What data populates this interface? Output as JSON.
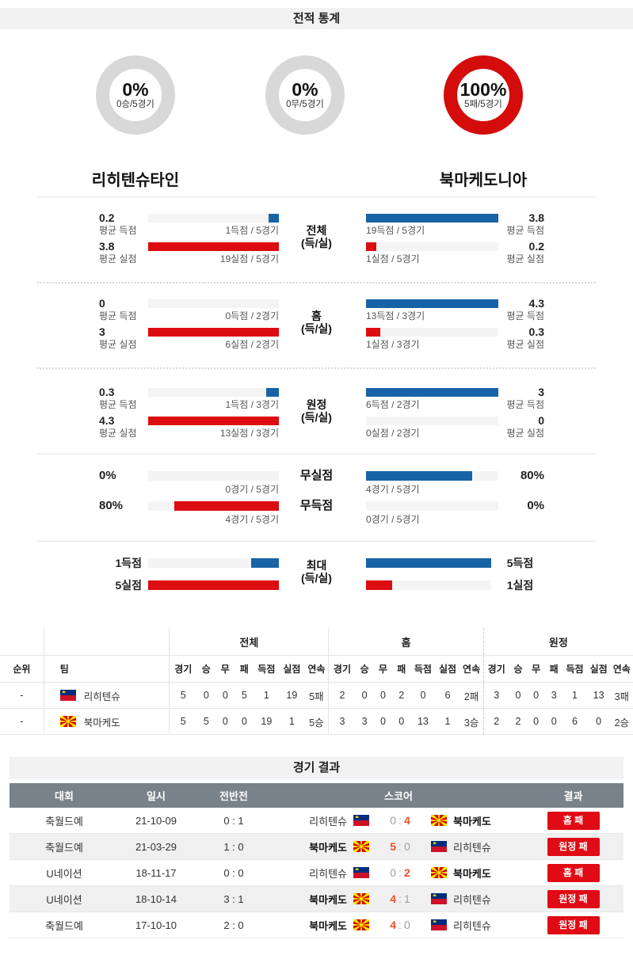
{
  "header": {
    "title": "전적 통계"
  },
  "donuts": [
    {
      "pct": "0%",
      "label": "0승/5경기",
      "color": "gray"
    },
    {
      "pct": "0%",
      "label": "0무/5경기",
      "color": "gray"
    },
    {
      "pct": "100%",
      "label": "5패/5경기",
      "color": "red"
    }
  ],
  "teams": {
    "home": "리히텐슈타인",
    "away": "북마케도니아"
  },
  "sections": [
    {
      "center": [
        "전체",
        "(득/실)"
      ],
      "rows": [
        {
          "left": {
            "value": "0.2",
            "avg_label": "평균 득점",
            "games_label": "1득점 / 5경기",
            "fill_pct": 8
          },
          "right": {
            "value": "3.8",
            "avg_label": "평균 득점",
            "games_label": "19득점 / 5경기",
            "fill_pct": 100
          }
        },
        {
          "left": {
            "value": "3.8",
            "avg_label": "평균 실점",
            "games_label": "19실점 / 5경기",
            "fill_pct": 100
          },
          "right": {
            "value": "0.2",
            "avg_label": "평균 실점",
            "games_label": "1실점 / 5경기",
            "fill_pct": 8
          }
        }
      ]
    },
    {
      "center": [
        "홈",
        "(득/실)"
      ],
      "rows": [
        {
          "left": {
            "value": "0",
            "avg_label": "평균 득점",
            "games_label": "0득점 / 2경기",
            "fill_pct": 0
          },
          "right": {
            "value": "4.3",
            "avg_label": "평균 득점",
            "games_label": "13득점 / 3경기",
            "fill_pct": 100
          }
        },
        {
          "left": {
            "value": "3",
            "avg_label": "평균 실점",
            "games_label": "6실점 / 2경기",
            "fill_pct": 100
          },
          "right": {
            "value": "0.3",
            "avg_label": "평균 실점",
            "games_label": "1실점 / 3경기",
            "fill_pct": 11
          }
        }
      ]
    },
    {
      "center": [
        "원정",
        "(득/실)"
      ],
      "rows": [
        {
          "left": {
            "value": "0.3",
            "avg_label": "평균 득점",
            "games_label": "1득점 / 3경기",
            "fill_pct": 10
          },
          "right": {
            "value": "3",
            "avg_label": "평균 득점",
            "games_label": "6득점 / 2경기",
            "fill_pct": 100
          }
        },
        {
          "left": {
            "value": "4.3",
            "avg_label": "평균 실점",
            "games_label": "13실점 / 3경기",
            "fill_pct": 100
          },
          "right": {
            "value": "0",
            "avg_label": "평균 실점",
            "games_label": "0실점 / 2경기",
            "fill_pct": 0
          }
        }
      ]
    },
    {
      "center": [
        "무실점",
        "무득점"
      ],
      "rows": [
        {
          "left": {
            "value": "0%",
            "games_label": "0경기 / 5경기",
            "fill_pct": 0
          },
          "right": {
            "value": "80%",
            "games_label": "4경기 / 5경기",
            "fill_pct": 80
          }
        },
        {
          "left": {
            "value": "80%",
            "games_label": "4경기 / 5경기",
            "fill_pct": 80
          },
          "right": {
            "value": "0%",
            "games_label": "0경기 / 5경기",
            "fill_pct": 0
          }
        }
      ]
    },
    {
      "center": [
        "최대",
        "(득/실)"
      ],
      "rows": [
        {
          "left": {
            "value": "1득점",
            "fill_pct": 21
          },
          "right": {
            "value": "5득점",
            "fill_pct": 100
          }
        },
        {
          "left": {
            "value": "5실점",
            "fill_pct": 100
          },
          "right": {
            "value": "1실점",
            "fill_pct": 21
          }
        }
      ]
    }
  ],
  "standings": {
    "rank_header": "순위",
    "team_header": "팀",
    "groups": [
      "전체",
      "홈",
      "원정"
    ],
    "columns": [
      "경기",
      "승",
      "무",
      "패",
      "득점",
      "실점",
      "연속"
    ],
    "rows": [
      {
        "rank": "-",
        "team": "리히텐슈",
        "flag": "liechtenstein",
        "all": [
          "5",
          "0",
          "0",
          "5",
          "1",
          "19",
          "5패"
        ],
        "home": [
          "2",
          "0",
          "0",
          "2",
          "0",
          "6",
          "2패"
        ],
        "away": [
          "3",
          "0",
          "0",
          "3",
          "1",
          "13",
          "3패"
        ]
      },
      {
        "rank": "-",
        "team": "북마케도",
        "flag": "north-macedonia",
        "all": [
          "5",
          "5",
          "0",
          "0",
          "19",
          "1",
          "5승"
        ],
        "home": [
          "3",
          "3",
          "0",
          "0",
          "13",
          "1",
          "3승"
        ],
        "away": [
          "2",
          "2",
          "0",
          "0",
          "6",
          "0",
          "2승"
        ]
      }
    ]
  },
  "results": {
    "title": "경기 결과",
    "headers": [
      "대회",
      "일시",
      "전반전",
      "스코어",
      "결과"
    ],
    "rows": [
      {
        "league": "축월드예",
        "date": "21-10-09",
        "half": "0 : 1",
        "home": "리히텐슈",
        "home_flag": "liechtenstein",
        "home_score": "0",
        "away_score": "4",
        "away": "북마케도",
        "away_flag": "north-macedonia",
        "winner": "away",
        "badge": "홈 패"
      },
      {
        "league": "축월드예",
        "date": "21-03-29",
        "half": "1 : 0",
        "home": "북마케도",
        "home_flag": "north-macedonia",
        "home_score": "5",
        "away_score": "0",
        "away": "리히텐슈",
        "away_flag": "liechtenstein",
        "winner": "home",
        "badge": "원정 패"
      },
      {
        "league": "U네이션",
        "date": "18-11-17",
        "half": "0 : 0",
        "home": "리히텐슈",
        "home_flag": "liechtenstein",
        "home_score": "0",
        "away_score": "2",
        "away": "북마케도",
        "away_flag": "north-macedonia",
        "winner": "away",
        "badge": "홈 패"
      },
      {
        "league": "U네이션",
        "date": "18-10-14",
        "half": "3 : 1",
        "home": "북마케도",
        "home_flag": "north-macedonia",
        "home_score": "4",
        "away_score": "1",
        "away": "리히텐슈",
        "away_flag": "liechtenstein",
        "winner": "home",
        "badge": "원정 패"
      },
      {
        "league": "축월드예",
        "date": "17-10-10",
        "half": "2 : 0",
        "home": "북마케도",
        "home_flag": "north-macedonia",
        "home_score": "4",
        "away_score": "0",
        "away": "리히텐슈",
        "away_flag": "liechtenstein",
        "winner": "home",
        "badge": "원정 패"
      }
    ]
  },
  "colors": {
    "bar_blue": "#1763a6",
    "bar_red": "#dc0c10",
    "donut_gray": "#d8d8d8",
    "donut_red": "#d40c0c",
    "score_win": "#f4502c",
    "badge_red": "#e00b15",
    "table_header_gray": "#79828a",
    "band_gray": "#f2f2f2"
  }
}
